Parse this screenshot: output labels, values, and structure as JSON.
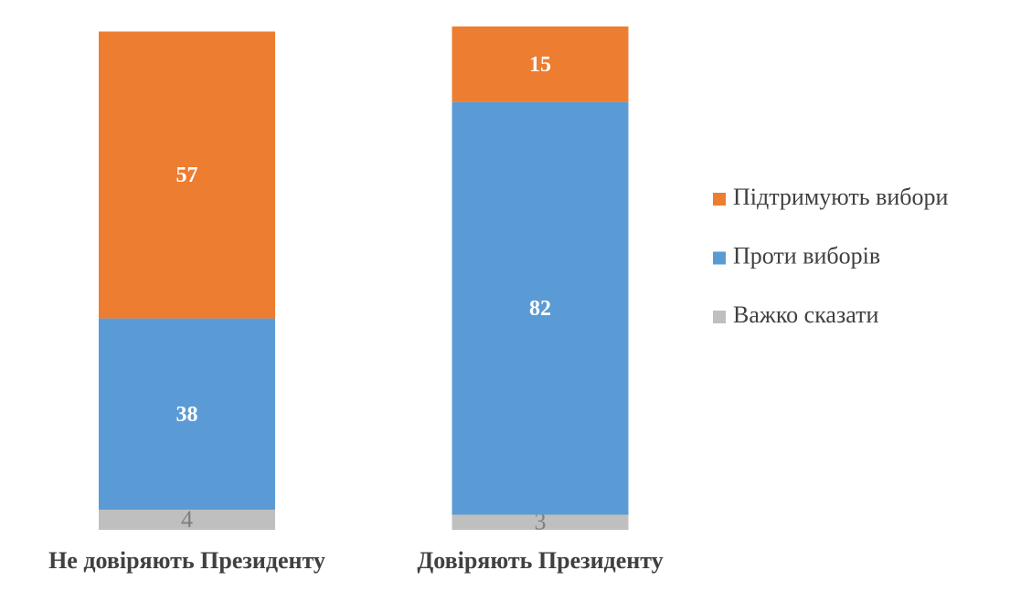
{
  "chart_data": {
    "type": "stacked-bar",
    "categories": [
      "Не довіряють Президенту",
      "Довіряють Президенту"
    ],
    "series": [
      {
        "name": "Підтримують вибори",
        "color": "#ED7D31",
        "values": [
          57,
          15
        ]
      },
      {
        "name": "Проти виборів",
        "color": "#5B9BD5",
        "values": [
          38,
          82
        ]
      },
      {
        "name": "Важко сказати",
        "color": "#BFBFBF",
        "values": [
          4,
          3
        ]
      }
    ],
    "ylim": [
      0,
      100
    ],
    "legend": "right"
  }
}
